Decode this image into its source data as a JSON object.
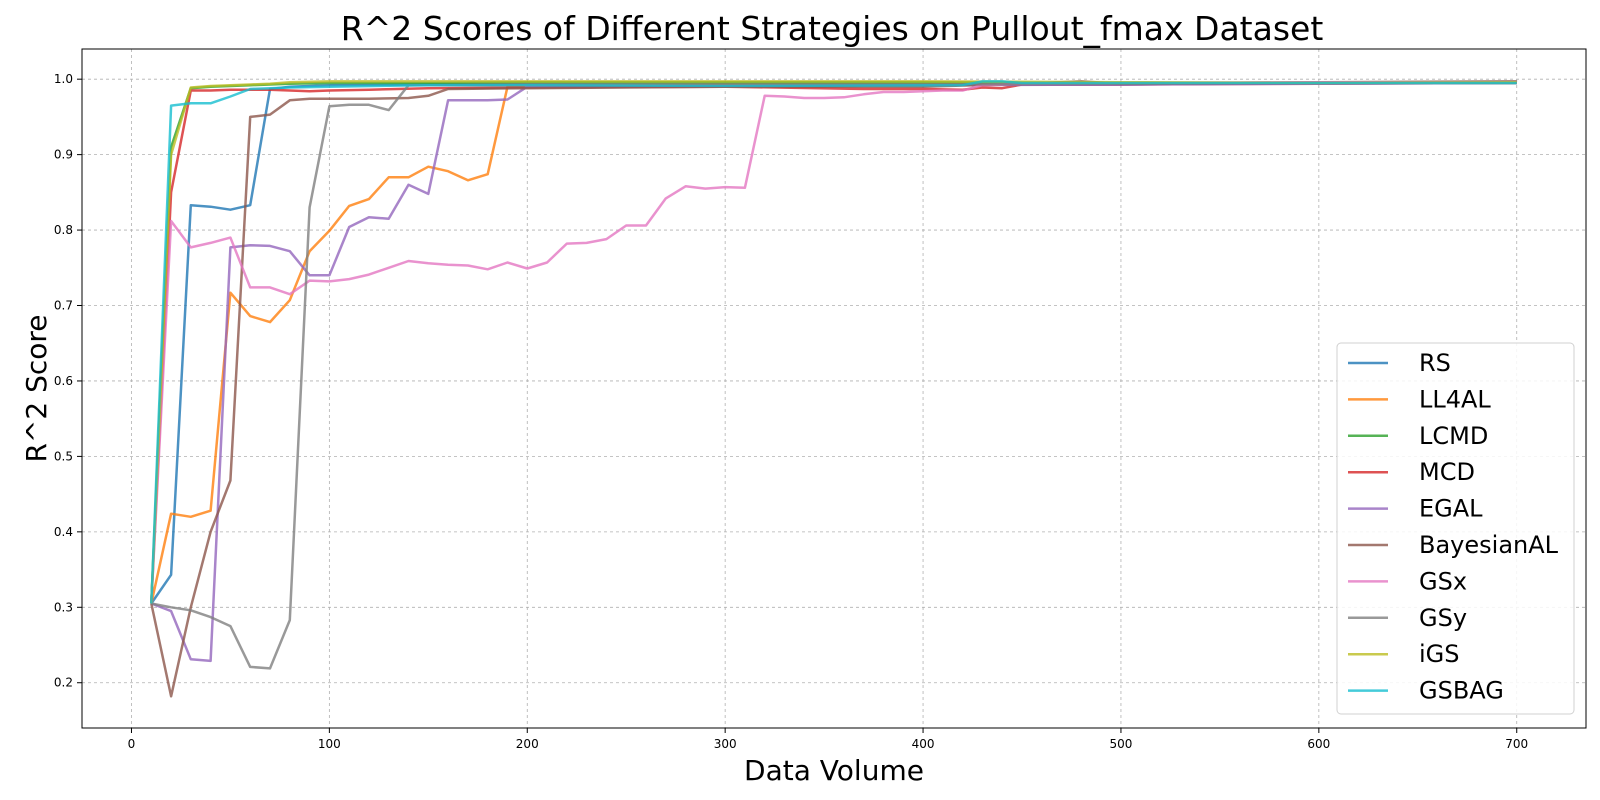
{
  "chart_data": {
    "type": "line",
    "title": "R^2 Scores of Different Strategies on Pullout_fmax Dataset",
    "xlabel": "Data Volume",
    "ylabel": "R^2 Score",
    "xlim": [
      -25,
      735
    ],
    "ylim": [
      0.14,
      1.04
    ],
    "xticks": [
      0,
      100,
      200,
      300,
      400,
      500,
      600,
      700
    ],
    "yticks": [
      0.2,
      0.3,
      0.4,
      0.5,
      0.6,
      0.7,
      0.8,
      0.9,
      1.0
    ],
    "grid": true,
    "legend_position": "lower-right",
    "series": [
      {
        "name": "RS",
        "color": "#1f77b4",
        "x": [
          10,
          20,
          30,
          40,
          50,
          60,
          70,
          80,
          100,
          150,
          200,
          300,
          400,
          500,
          600,
          700
        ],
        "y": [
          0.305,
          0.343,
          0.833,
          0.831,
          0.827,
          0.833,
          0.987,
          0.99,
          0.992,
          0.993,
          0.993,
          0.993,
          0.993,
          0.993,
          0.995,
          0.996
        ]
      },
      {
        "name": "LL4AL",
        "color": "#ff7f0e",
        "x": [
          10,
          20,
          30,
          40,
          50,
          60,
          70,
          80,
          90,
          100,
          110,
          120,
          130,
          140,
          150,
          160,
          170,
          180,
          190,
          200,
          300,
          400,
          500,
          600,
          700
        ],
        "y": [
          0.305,
          0.424,
          0.42,
          0.428,
          0.717,
          0.686,
          0.678,
          0.707,
          0.772,
          0.799,
          0.832,
          0.841,
          0.87,
          0.87,
          0.884,
          0.878,
          0.866,
          0.874,
          0.99,
          0.991,
          0.993,
          0.993,
          0.994,
          0.995,
          0.996
        ]
      },
      {
        "name": "LCMD",
        "color": "#2ca02c",
        "x": [
          10,
          20,
          30,
          40,
          50,
          60,
          70,
          80,
          100,
          150,
          200,
          300,
          400,
          500,
          600,
          700
        ],
        "y": [
          0.305,
          0.91,
          0.988,
          0.99,
          0.991,
          0.992,
          0.993,
          0.994,
          0.995,
          0.995,
          0.996,
          0.996,
          0.996,
          0.995,
          0.995,
          0.995
        ]
      },
      {
        "name": "MCD",
        "color": "#d62728",
        "x": [
          10,
          20,
          30,
          40,
          50,
          60,
          70,
          80,
          90,
          100,
          120,
          150,
          200,
          300,
          370,
          400,
          420,
          430,
          440,
          450,
          500,
          600,
          700
        ],
        "y": [
          0.305,
          0.85,
          0.985,
          0.985,
          0.986,
          0.986,
          0.986,
          0.985,
          0.984,
          0.985,
          0.986,
          0.988,
          0.989,
          0.99,
          0.987,
          0.987,
          0.986,
          0.989,
          0.988,
          0.993,
          0.993,
          0.994,
          0.995
        ]
      },
      {
        "name": "EGAL",
        "color": "#9467bd",
        "x": [
          10,
          20,
          30,
          40,
          50,
          60,
          70,
          80,
          90,
          100,
          110,
          120,
          130,
          140,
          150,
          160,
          170,
          180,
          190,
          200,
          300,
          400,
          500,
          600,
          700
        ],
        "y": [
          0.305,
          0.295,
          0.231,
          0.229,
          0.777,
          0.78,
          0.779,
          0.772,
          0.74,
          0.74,
          0.804,
          0.817,
          0.815,
          0.86,
          0.848,
          0.972,
          0.972,
          0.972,
          0.973,
          0.99,
          0.991,
          0.992,
          0.993,
          0.994,
          0.995
        ]
      },
      {
        "name": "BayesianAL",
        "color": "#8c564b",
        "x": [
          10,
          20,
          30,
          40,
          50,
          60,
          70,
          80,
          90,
          100,
          120,
          140,
          150,
          160,
          200,
          300,
          400,
          450,
          480,
          500,
          600,
          700
        ],
        "y": [
          0.305,
          0.182,
          0.3,
          0.4,
          0.468,
          0.95,
          0.953,
          0.972,
          0.974,
          0.974,
          0.974,
          0.975,
          0.978,
          0.987,
          0.988,
          0.99,
          0.99,
          0.994,
          0.997,
          0.994,
          0.996,
          0.997
        ]
      },
      {
        "name": "GSx",
        "color": "#e377c2",
        "x": [
          10,
          20,
          30,
          40,
          50,
          60,
          70,
          80,
          90,
          100,
          110,
          120,
          130,
          140,
          150,
          160,
          170,
          180,
          190,
          200,
          210,
          220,
          230,
          240,
          250,
          260,
          270,
          280,
          290,
          300,
          310,
          320,
          330,
          340,
          350,
          360,
          370,
          380,
          390,
          400,
          410,
          420,
          430,
          440,
          450,
          500,
          600,
          700
        ],
        "y": [
          0.305,
          0.812,
          0.777,
          0.783,
          0.79,
          0.724,
          0.724,
          0.715,
          0.733,
          0.732,
          0.735,
          0.741,
          0.75,
          0.759,
          0.756,
          0.754,
          0.753,
          0.748,
          0.757,
          0.749,
          0.757,
          0.782,
          0.783,
          0.788,
          0.806,
          0.806,
          0.842,
          0.858,
          0.855,
          0.857,
          0.856,
          0.978,
          0.977,
          0.975,
          0.975,
          0.976,
          0.98,
          0.983,
          0.983,
          0.984,
          0.985,
          0.985,
          0.992,
          0.993,
          0.994,
          0.995,
          0.996,
          0.996
        ]
      },
      {
        "name": "GSy",
        "color": "#7f7f7f",
        "x": [
          10,
          20,
          30,
          40,
          50,
          60,
          70,
          80,
          90,
          100,
          110,
          120,
          130,
          140,
          150,
          200,
          300,
          400,
          500,
          600,
          700
        ],
        "y": [
          0.305,
          0.3,
          0.296,
          0.287,
          0.275,
          0.221,
          0.219,
          0.283,
          0.83,
          0.964,
          0.966,
          0.966,
          0.959,
          0.992,
          0.992,
          0.993,
          0.993,
          0.993,
          0.994,
          0.995,
          0.995
        ]
      },
      {
        "name": "iGS",
        "color": "#bcbd22",
        "x": [
          10,
          20,
          30,
          40,
          50,
          60,
          70,
          80,
          100,
          150,
          200,
          300,
          400,
          500,
          600,
          700
        ],
        "y": [
          0.305,
          0.9,
          0.989,
          0.991,
          0.992,
          0.993,
          0.994,
          0.996,
          0.997,
          0.997,
          0.997,
          0.997,
          0.997,
          0.996,
          0.995,
          0.996
        ]
      },
      {
        "name": "GSBAG",
        "color": "#17becf",
        "x": [
          10,
          20,
          30,
          40,
          50,
          60,
          70,
          80,
          100,
          150,
          200,
          300,
          420,
          430,
          440,
          450,
          500,
          600,
          700
        ],
        "y": [
          0.305,
          0.965,
          0.968,
          0.968,
          0.977,
          0.987,
          0.988,
          0.989,
          0.99,
          0.992,
          0.992,
          0.991,
          0.992,
          0.997,
          0.997,
          0.995,
          0.995,
          0.995,
          0.995
        ]
      }
    ]
  }
}
